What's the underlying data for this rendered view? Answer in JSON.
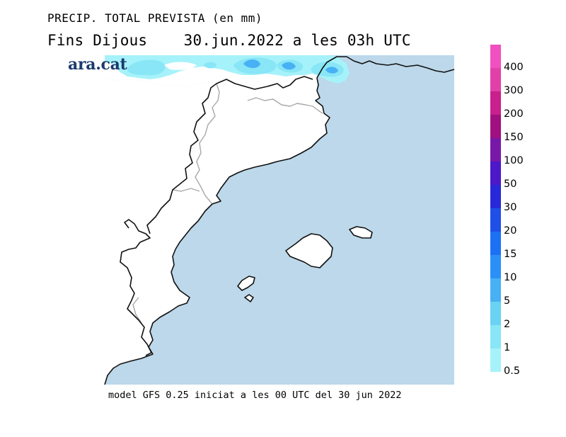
{
  "header": {
    "title": "PRECIP. TOTAL PREVISTA (en mm)",
    "subtitle": "Fins Dijous    30.jun.2022 a les 03h UTC"
  },
  "logo": {
    "text": "ara.cat"
  },
  "footer": {
    "text": "model GFS 0.25 iniciat a les 00 UTC del 30 jun 2022"
  },
  "colors": {
    "sea": "#bcd8ea",
    "land": "#ffffff",
    "coast": "#111111",
    "border": "#a8a8a8"
  },
  "legend": {
    "items": [
      {
        "label": "400",
        "color": "#f050c0"
      },
      {
        "label": "300",
        "color": "#e040a8"
      },
      {
        "label": "200",
        "color": "#c8208c"
      },
      {
        "label": "150",
        "color": "#a01080"
      },
      {
        "label": "100",
        "color": "#7818a8"
      },
      {
        "label": "50",
        "color": "#4c18c8"
      },
      {
        "label": "30",
        "color": "#2828d8"
      },
      {
        "label": "20",
        "color": "#1e50e8"
      },
      {
        "label": "15",
        "color": "#1c70f4"
      },
      {
        "label": "10",
        "color": "#2a90f8"
      },
      {
        "label": "5",
        "color": "#48b0f4"
      },
      {
        "label": "2",
        "color": "#6ad2f2"
      },
      {
        "label": "1",
        "color": "#88e6f6"
      },
      {
        "label": "0.5",
        "color": "#a6f2fa"
      }
    ]
  }
}
